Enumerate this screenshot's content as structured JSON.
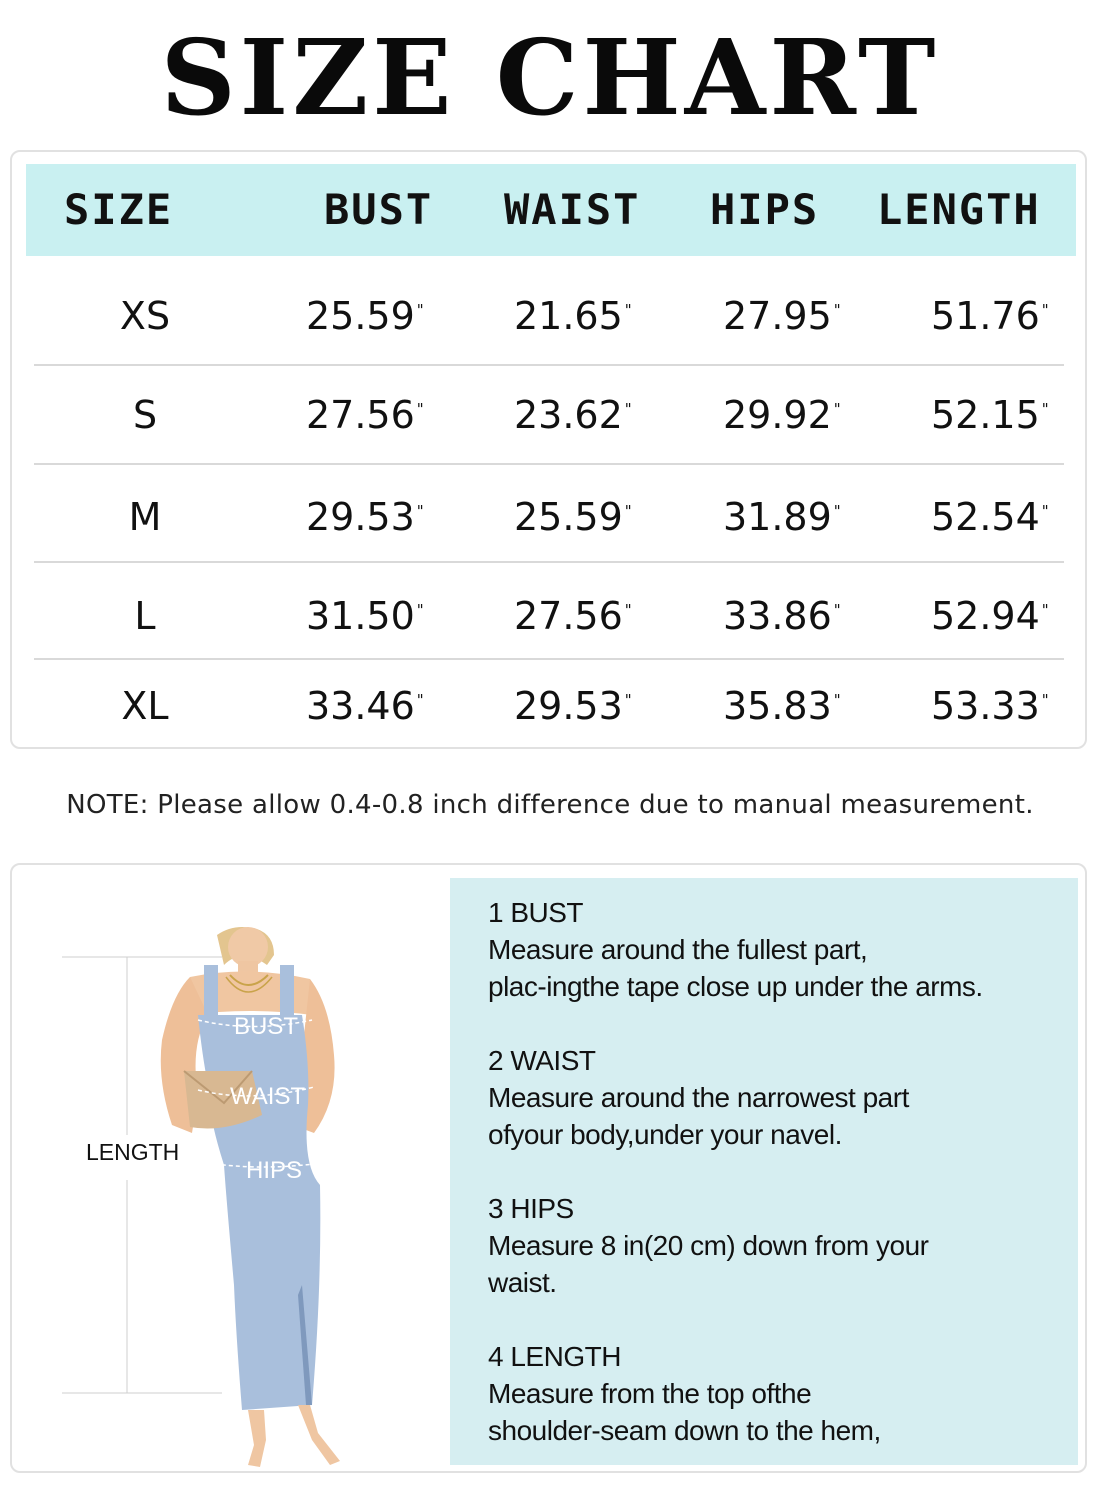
{
  "title": "SIZE CHART",
  "table": {
    "headers": [
      "SIZE",
      "BUST",
      "WAIST",
      "HIPS",
      "LENGTH"
    ],
    "unit_mark": "\"",
    "rows": [
      {
        "size": "XS",
        "bust": "25.59",
        "waist": "21.65",
        "hips": "27.95",
        "length": "51.76"
      },
      {
        "size": "S",
        "bust": "27.56",
        "waist": "23.62",
        "hips": "29.92",
        "length": "52.15"
      },
      {
        "size": "M",
        "bust": "29.53",
        "waist": "25.59",
        "hips": "31.89",
        "length": "52.54"
      },
      {
        "size": "L",
        "bust": "31.50",
        "waist": "27.56",
        "hips": "33.86",
        "length": "52.94"
      },
      {
        "size": "XL",
        "bust": "33.46",
        "waist": "29.53",
        "hips": "35.83",
        "length": "53.33"
      }
    ]
  },
  "note": "NOTE: Please allow 0.4-0.8 inch difference due to manual measurement.",
  "figure": {
    "labels": {
      "bust": "BUST",
      "waist": "WAIST",
      "hips": "HIPS",
      "length": "LENGTH"
    },
    "dress_color": "#a9bfdc"
  },
  "instructions": [
    {
      "title": "1 BUST",
      "lines": [
        "Measure around the fullest part,",
        "plac-ingthe tape close up under the arms."
      ]
    },
    {
      "title": "2 WAIST",
      "lines": [
        "Measure around the narrowest part",
        "ofyour body,under your navel."
      ]
    },
    {
      "title": "3 HIPS",
      "lines": [
        "Measure 8 in(20 cm) down from your",
        "waist."
      ]
    },
    {
      "title": "4 LENGTH",
      "lines": [
        "Measure from the top ofthe",
        "shoulder-seam down to the hem,"
      ]
    }
  ],
  "colors": {
    "header_bg": "#c9f0f1",
    "panel_bg": "#d6eef1",
    "border": "#e1e1e1"
  }
}
